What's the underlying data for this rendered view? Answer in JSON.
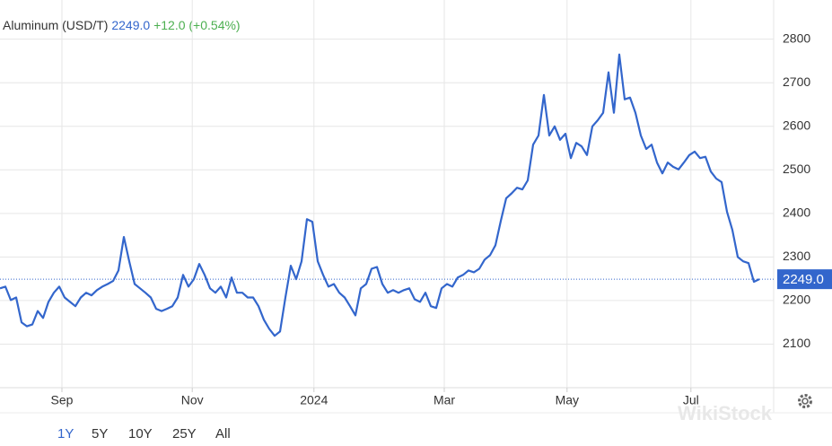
{
  "chart_data": {
    "type": "line",
    "title": "Aluminum (USD/T)",
    "price": "2249.0",
    "change": "+12.0 (+0.54%)",
    "color": "#3366cc",
    "grid": true,
    "ranges": [
      "1Y",
      "5Y",
      "10Y",
      "25Y",
      "All"
    ],
    "active_range": "1Y",
    "watermark": "WikiStock",
    "xlim": [
      0,
      141
    ],
    "ylim": [
      2000,
      2890
    ],
    "xticks": [
      {
        "value": 11.5,
        "label": "Sep"
      },
      {
        "value": 35.7,
        "label": "Nov"
      },
      {
        "value": 58.3,
        "label": "2024"
      },
      {
        "value": 82.5,
        "label": "Mar"
      },
      {
        "value": 105.3,
        "label": "May"
      },
      {
        "value": 128.3,
        "label": "Jul"
      }
    ],
    "yticks": [
      2100,
      2200,
      2300,
      2400,
      2500,
      2600,
      2700,
      2800
    ],
    "values": [
      2228,
      2232,
      2201,
      2207,
      2150,
      2141,
      2145,
      2176,
      2160,
      2197,
      2218,
      2232,
      2207,
      2197,
      2187,
      2207,
      2218,
      2212,
      2224,
      2232,
      2238,
      2245,
      2269,
      2346,
      2290,
      2238,
      2228,
      2218,
      2207,
      2181,
      2176,
      2181,
      2187,
      2207,
      2259,
      2232,
      2249,
      2284,
      2259,
      2228,
      2218,
      2232,
      2207,
      2253,
      2218,
      2218,
      2207,
      2207,
      2187,
      2156,
      2135,
      2119,
      2129,
      2207,
      2280,
      2249,
      2290,
      2387,
      2381,
      2290,
      2259,
      2232,
      2238,
      2218,
      2207,
      2187,
      2166,
      2228,
      2238,
      2273,
      2277,
      2238,
      2218,
      2224,
      2218,
      2224,
      2228,
      2203,
      2197,
      2218,
      2187,
      2183,
      2228,
      2238,
      2232,
      2253,
      2259,
      2269,
      2265,
      2273,
      2294,
      2304,
      2327,
      2383,
      2435,
      2446,
      2459,
      2455,
      2476,
      2558,
      2579,
      2672,
      2579,
      2600,
      2569,
      2583,
      2527,
      2562,
      2554,
      2534,
      2600,
      2614,
      2631,
      2724,
      2631,
      2765,
      2662,
      2666,
      2631,
      2579,
      2548,
      2558,
      2517,
      2492,
      2517,
      2507,
      2501,
      2517,
      2534,
      2542,
      2527,
      2530,
      2496,
      2480,
      2472,
      2404,
      2362,
      2300,
      2290,
      2286,
      2243,
      2249
    ]
  }
}
